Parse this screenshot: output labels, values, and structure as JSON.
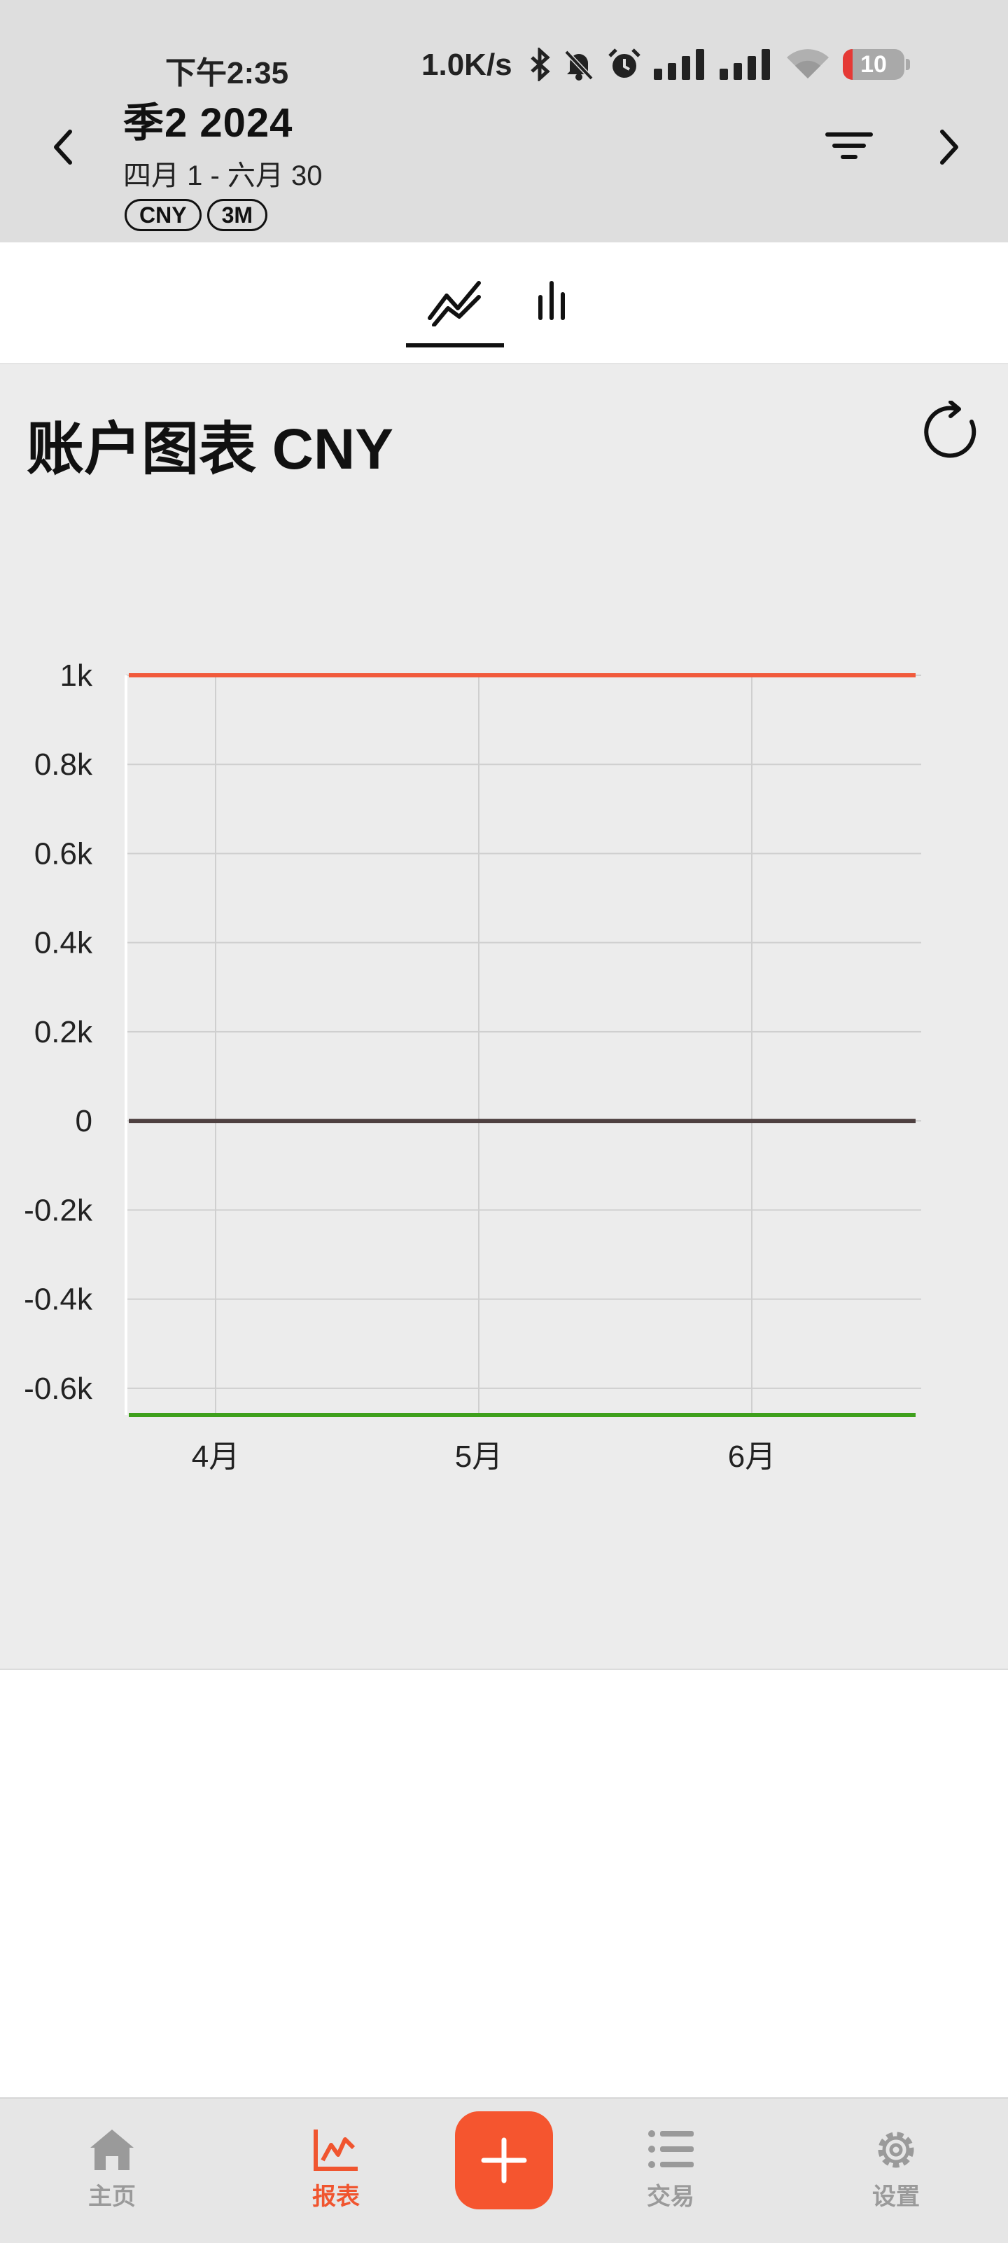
{
  "status_bar": {
    "time": "下午2:35",
    "network_speed": "1.0K/s",
    "battery_level": "10",
    "icons": [
      "bluetooth-icon",
      "mute-icon",
      "alarm-icon",
      "signal-icon",
      "signal-icon",
      "wifi-icon",
      "battery-icon"
    ]
  },
  "header": {
    "title": "季2 2024",
    "date_range": "四月 1 - 六月 30",
    "chips": [
      "CNY",
      "3M"
    ],
    "prev_icon": "chevron-left-icon",
    "next_icon": "chevron-right-icon",
    "filter_icon": "filter-icon"
  },
  "tabs": [
    {
      "icon": "line-chart-icon",
      "selected": true
    },
    {
      "icon": "bar-chart-icon",
      "selected": false
    }
  ],
  "card": {
    "title": "账户图表 CNY",
    "refresh_icon": "refresh-icon"
  },
  "chart_data": {
    "type": "line",
    "x": [
      "4月",
      "5月",
      "6月"
    ],
    "ylim": [
      -0.66,
      1
    ],
    "yticks": [
      "1k",
      "0.8k",
      "0.6k",
      "0.4k",
      "0.2k",
      "0",
      "-0.2k",
      "-0.4k",
      "-0.6k"
    ],
    "ytick_values": [
      1000,
      800,
      600,
      400,
      200,
      0,
      -200,
      -400,
      -600
    ],
    "y_range": [
      -660,
      1000
    ],
    "grid": true,
    "series": [
      {
        "color": "#f15a3b",
        "values": [
          1000,
          1000,
          1000
        ]
      },
      {
        "color": "#4e4040",
        "values": [
          0,
          0,
          0
        ]
      },
      {
        "color": "#3ea01c",
        "values": [
          -660,
          -660,
          -660
        ]
      }
    ]
  },
  "bottom_nav": {
    "items": [
      {
        "label": "主页",
        "icon": "home-icon",
        "active": false
      },
      {
        "label": "报表",
        "icon": "chart-icon",
        "active": true
      },
      {
        "label": "交易",
        "icon": "list-icon",
        "active": false
      },
      {
        "label": "设置",
        "icon": "gear-icon",
        "active": false
      }
    ],
    "add_icon": "plus-icon"
  },
  "colors": {
    "accent": "#f5552f",
    "header_bg": "#dedede",
    "card_bg": "#ececec"
  }
}
